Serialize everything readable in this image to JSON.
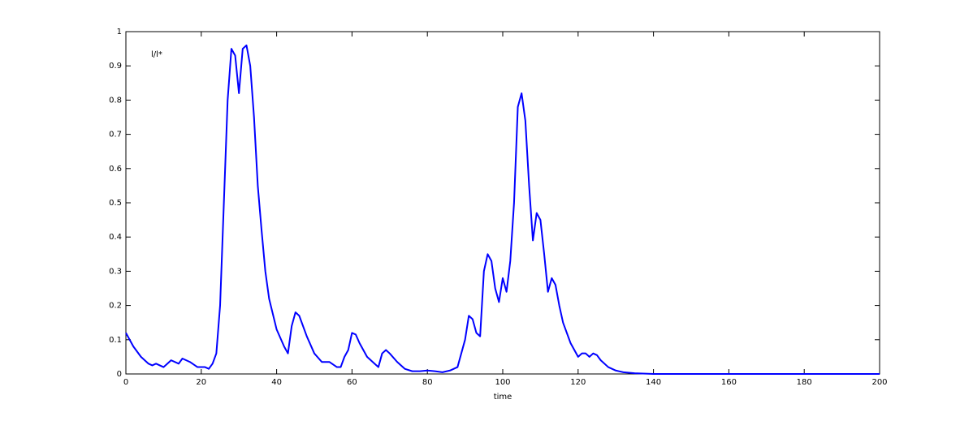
{
  "chart_data": {
    "type": "line",
    "annotation": "l/l*",
    "x_label": "time",
    "x": [
      0,
      2,
      4,
      6,
      7,
      8,
      10,
      11,
      12,
      14,
      15,
      17,
      19,
      21,
      22,
      23,
      24,
      25,
      26,
      27,
      28,
      29,
      30,
      31,
      32,
      33,
      34,
      35,
      36,
      37,
      38,
      40,
      42,
      43,
      44,
      45,
      46,
      48,
      50,
      52,
      54,
      56,
      57,
      58,
      59,
      60,
      61,
      62,
      64,
      66,
      67,
      68,
      69,
      70,
      72,
      74,
      76,
      78,
      80,
      82,
      84,
      86,
      88,
      89,
      90,
      91,
      92,
      93,
      94,
      95,
      96,
      97,
      98,
      99,
      100,
      101,
      102,
      103,
      104,
      105,
      106,
      107,
      108,
      109,
      110,
      111,
      112,
      113,
      114,
      115,
      116,
      118,
      120,
      121,
      122,
      123,
      124,
      125,
      126,
      128,
      130,
      132,
      135,
      140,
      200
    ],
    "series": [
      {
        "color": "#0000ff",
        "values": [
          0.12,
          0.08,
          0.05,
          0.03,
          0.025,
          0.03,
          0.02,
          0.03,
          0.04,
          0.03,
          0.045,
          0.035,
          0.02,
          0.02,
          0.015,
          0.03,
          0.06,
          0.2,
          0.5,
          0.8,
          0.95,
          0.93,
          0.82,
          0.95,
          0.96,
          0.9,
          0.75,
          0.55,
          0.42,
          0.3,
          0.22,
          0.13,
          0.08,
          0.06,
          0.14,
          0.18,
          0.17,
          0.11,
          0.06,
          0.035,
          0.035,
          0.02,
          0.02,
          0.05,
          0.07,
          0.12,
          0.115,
          0.09,
          0.05,
          0.03,
          0.02,
          0.06,
          0.07,
          0.06,
          0.035,
          0.015,
          0.008,
          0.008,
          0.01,
          0.008,
          0.005,
          0.01,
          0.02,
          0.06,
          0.1,
          0.17,
          0.16,
          0.12,
          0.11,
          0.3,
          0.35,
          0.33,
          0.25,
          0.21,
          0.28,
          0.24,
          0.33,
          0.5,
          0.78,
          0.82,
          0.74,
          0.55,
          0.39,
          0.47,
          0.45,
          0.35,
          0.24,
          0.28,
          0.26,
          0.2,
          0.15,
          0.09,
          0.05,
          0.06,
          0.06,
          0.05,
          0.06,
          0.055,
          0.04,
          0.02,
          0.01,
          0.005,
          0.002,
          0,
          0
        ]
      }
    ],
    "xlim": [
      0,
      200
    ],
    "xticks": [
      0,
      20,
      40,
      60,
      80,
      100,
      120,
      140,
      160,
      180,
      200
    ],
    "ylim": [
      0,
      1
    ],
    "yticks": [
      0,
      0.1,
      0.2,
      0.3,
      0.4,
      0.5,
      0.6,
      0.7,
      0.8,
      0.9,
      1
    ]
  }
}
